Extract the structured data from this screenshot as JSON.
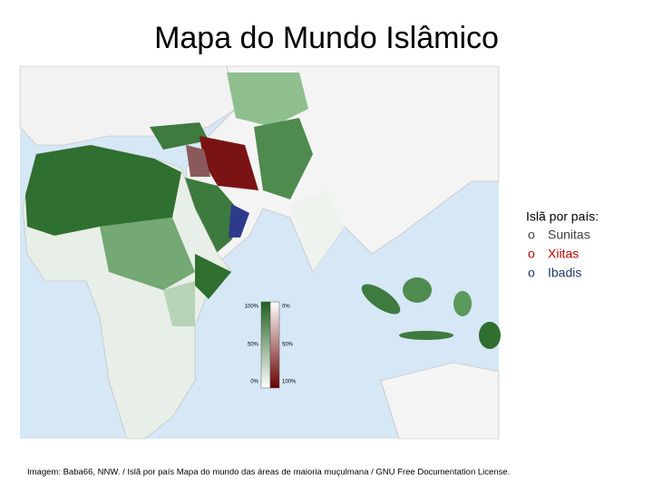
{
  "title": "Mapa do Mundo Islâmico",
  "legend": {
    "heading": "Islã por país:",
    "items": [
      {
        "marker": "o",
        "label": "Sunitas",
        "color": "#404040"
      },
      {
        "marker": "o",
        "label": "Xiitas",
        "color": "#c00000"
      },
      {
        "marker": "o",
        "label": "Ibadis",
        "color": "#1f3864"
      }
    ]
  },
  "scale": {
    "left_labels": [
      "100%",
      "50%",
      "0%"
    ],
    "right_labels": [
      "0%",
      "50%",
      "100%"
    ]
  },
  "caption": "Imagem: Baba66, NNW. / Islã por país Mapa do mundo das áreas de maioria muçulmana / GNU Free Documentation License."
}
